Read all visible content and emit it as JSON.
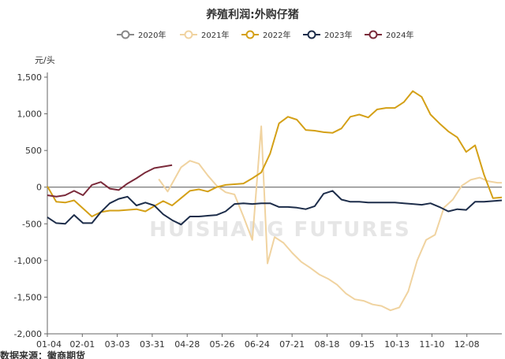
{
  "chart_data": {
    "type": "line",
    "title": "养殖利润:外购仔猪",
    "y_unit_label": "元/头",
    "ylim": [
      -2000,
      1500
    ],
    "y_ticks": [
      1500,
      1000,
      500,
      0,
      -500,
      -1000,
      -1500,
      -2000
    ],
    "y_tick_labels": [
      "1,500",
      "1,000",
      "500",
      "0",
      "-500",
      "-1,000",
      "-1,500",
      "-2,000"
    ],
    "x_tick_labels": [
      "01-04",
      "02-01",
      "03-03",
      "03-31",
      "04-28",
      "05-26",
      "06-24",
      "07-21",
      "08-18",
      "09-15",
      "10-13",
      "11-10",
      "12-08"
    ],
    "x_range": [
      0,
      51
    ],
    "legend_position": "top-center",
    "grid": false,
    "watermark": "HUISHANG FUTURES",
    "footer": "数据来源：徽商期货",
    "series": [
      {
        "name": "2020年",
        "color": "#888888",
        "x": [],
        "values": []
      },
      {
        "name": "2021年",
        "color": "#f0d3a0",
        "x": [
          12.5,
          13.5,
          15,
          16,
          17,
          18,
          19,
          20,
          21,
          22,
          23,
          24,
          24.7,
          25.5,
          26.5,
          27.5,
          28.5,
          29.5,
          30.5,
          31.5,
          32.5,
          33.5,
          34.5,
          35.5,
          36.5,
          37.5,
          38.5,
          39.5,
          40.5,
          41.5,
          42.5,
          43.5,
          44.5,
          45.5,
          46.5,
          47.5,
          48.5,
          49.5,
          50.5,
          51
        ],
        "values": [
          110,
          -60,
          270,
          360,
          320,
          160,
          20,
          -70,
          -100,
          -400,
          -720,
          830,
          -1040,
          -680,
          -760,
          -900,
          -1020,
          -1100,
          -1190,
          -1250,
          -1330,
          -1450,
          -1530,
          -1550,
          -1600,
          -1620,
          -1680,
          -1640,
          -1420,
          -1000,
          -720,
          -650,
          -280,
          -170,
          20,
          100,
          130,
          80,
          60,
          60
        ]
      },
      {
        "name": "2022年",
        "color": "#d4a017",
        "x": [
          0,
          1,
          2,
          3,
          4,
          5,
          6,
          7,
          8,
          9,
          10,
          11,
          12,
          13,
          14,
          15,
          16,
          17,
          18,
          19,
          20,
          21,
          22,
          23,
          24,
          25,
          26,
          27,
          28,
          29,
          30,
          31,
          32,
          33,
          34,
          35,
          36,
          37,
          38,
          39,
          40,
          41,
          42,
          43,
          44,
          45,
          46,
          47,
          48,
          49,
          50,
          51
        ],
        "values": [
          10,
          -200,
          -210,
          -180,
          -290,
          -400,
          -340,
          -320,
          -320,
          -310,
          -300,
          -330,
          -260,
          -190,
          -250,
          -150,
          -50,
          -30,
          -60,
          0,
          30,
          40,
          50,
          120,
          200,
          460,
          870,
          960,
          920,
          780,
          770,
          750,
          740,
          800,
          960,
          990,
          950,
          1060,
          1080,
          1080,
          1160,
          1310,
          1230,
          990,
          870,
          760,
          680,
          480,
          570,
          170,
          -150,
          -140
        ]
      },
      {
        "name": "2023年",
        "color": "#1d2d4a",
        "x": [
          0,
          1,
          2,
          3,
          4,
          5,
          6,
          7,
          8,
          9,
          10,
          11,
          12,
          13,
          14,
          15,
          16,
          17,
          18,
          19,
          20,
          21,
          22,
          23,
          24,
          25,
          26,
          27,
          28,
          29,
          30,
          31,
          32,
          33,
          34,
          35,
          36,
          37,
          38,
          39,
          40,
          41,
          42,
          43,
          44,
          45,
          46,
          47,
          48,
          49,
          50,
          51
        ],
        "values": [
          -410,
          -490,
          -500,
          -380,
          -490,
          -490,
          -340,
          -220,
          -160,
          -130,
          -250,
          -210,
          -250,
          -370,
          -450,
          -510,
          -400,
          -400,
          -390,
          -380,
          -330,
          -230,
          -220,
          -230,
          -220,
          -220,
          -270,
          -270,
          -280,
          -300,
          -260,
          -90,
          -50,
          -170,
          -200,
          -200,
          -210,
          -210,
          -210,
          -210,
          -220,
          -230,
          -240,
          -220,
          -270,
          -330,
          -300,
          -310,
          -200,
          -200,
          -190,
          -180
        ]
      },
      {
        "name": "2024年",
        "color": "#7a2a3a",
        "x": [
          0,
          1,
          2,
          3,
          4,
          5,
          6,
          7,
          8,
          9,
          10,
          11,
          12,
          13,
          14
        ],
        "values": [
          -110,
          -130,
          -110,
          -50,
          -110,
          30,
          70,
          -20,
          -40,
          50,
          120,
          200,
          260,
          280,
          300
        ]
      }
    ]
  }
}
